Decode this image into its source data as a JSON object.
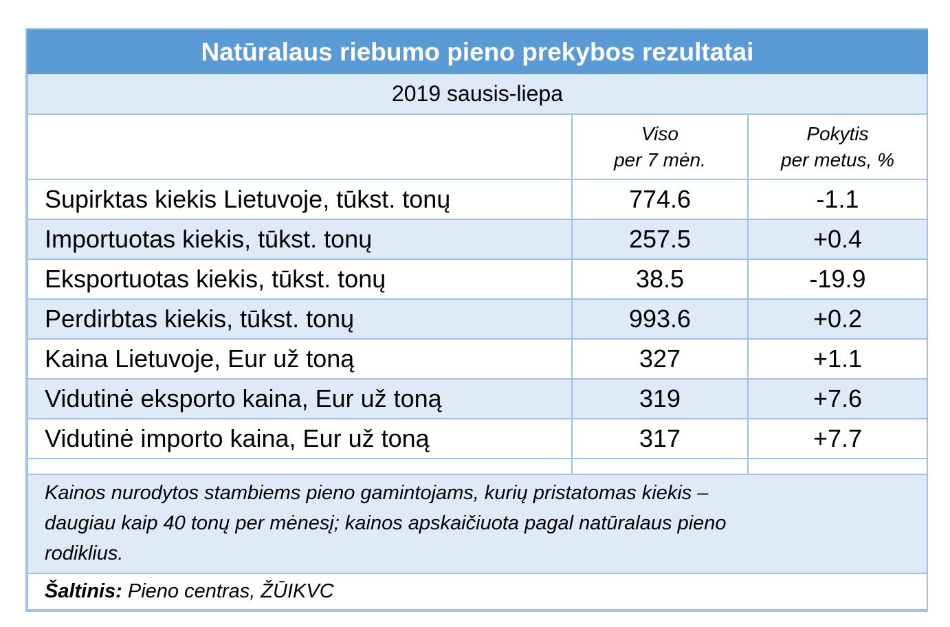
{
  "title": "Natūralaus riebumo pieno prekybos rezultatai",
  "period": "2019 sausis-liepa",
  "header": {
    "col2_line1": "Viso",
    "col2_line2": "per 7 mėn.",
    "col3_line1": "Pokytis",
    "col3_line2": "per metus, %"
  },
  "rows": [
    {
      "label": "Supirktas kiekis Lietuvoje, tūkst. tonų",
      "total": "774.6",
      "change": "-1.1"
    },
    {
      "label": "Importuotas kiekis, tūkst. tonų",
      "total": "257.5",
      "change": "+0.4"
    },
    {
      "label": "Eksportuotas kiekis, tūkst. tonų",
      "total": "38.5",
      "change": "-19.9"
    },
    {
      "label": "Perdirbtas kiekis, tūkst. tonų",
      "total": "993.6",
      "change": "+0.2"
    },
    {
      "label": "Kaina Lietuvoje, Eur už toną",
      "total": "327",
      "change": "+1.1"
    },
    {
      "label": "Vidutinė eksporto kaina, Eur už toną",
      "total": "319",
      "change": "+7.6"
    },
    {
      "label": "Vidutinė importo kaina, Eur už toną",
      "total": "317",
      "change": "+7.7"
    }
  ],
  "note": {
    "line1": "Kainos nurodytos stambiems pieno gamintojams, kurių pristatomas kiekis –",
    "line2": "daugiau kaip 40 tonų per mėnesį; kainos apskaičiuota pagal natūralaus pieno",
    "line3": "rodiklius."
  },
  "source": {
    "label": "Šaltinis:",
    "text": " Pieno centras, ŽŪIKVC"
  },
  "colors": {
    "title_bg": "#5b9bd5",
    "band_bg": "#deebf7",
    "border": "#9dc3e6"
  }
}
